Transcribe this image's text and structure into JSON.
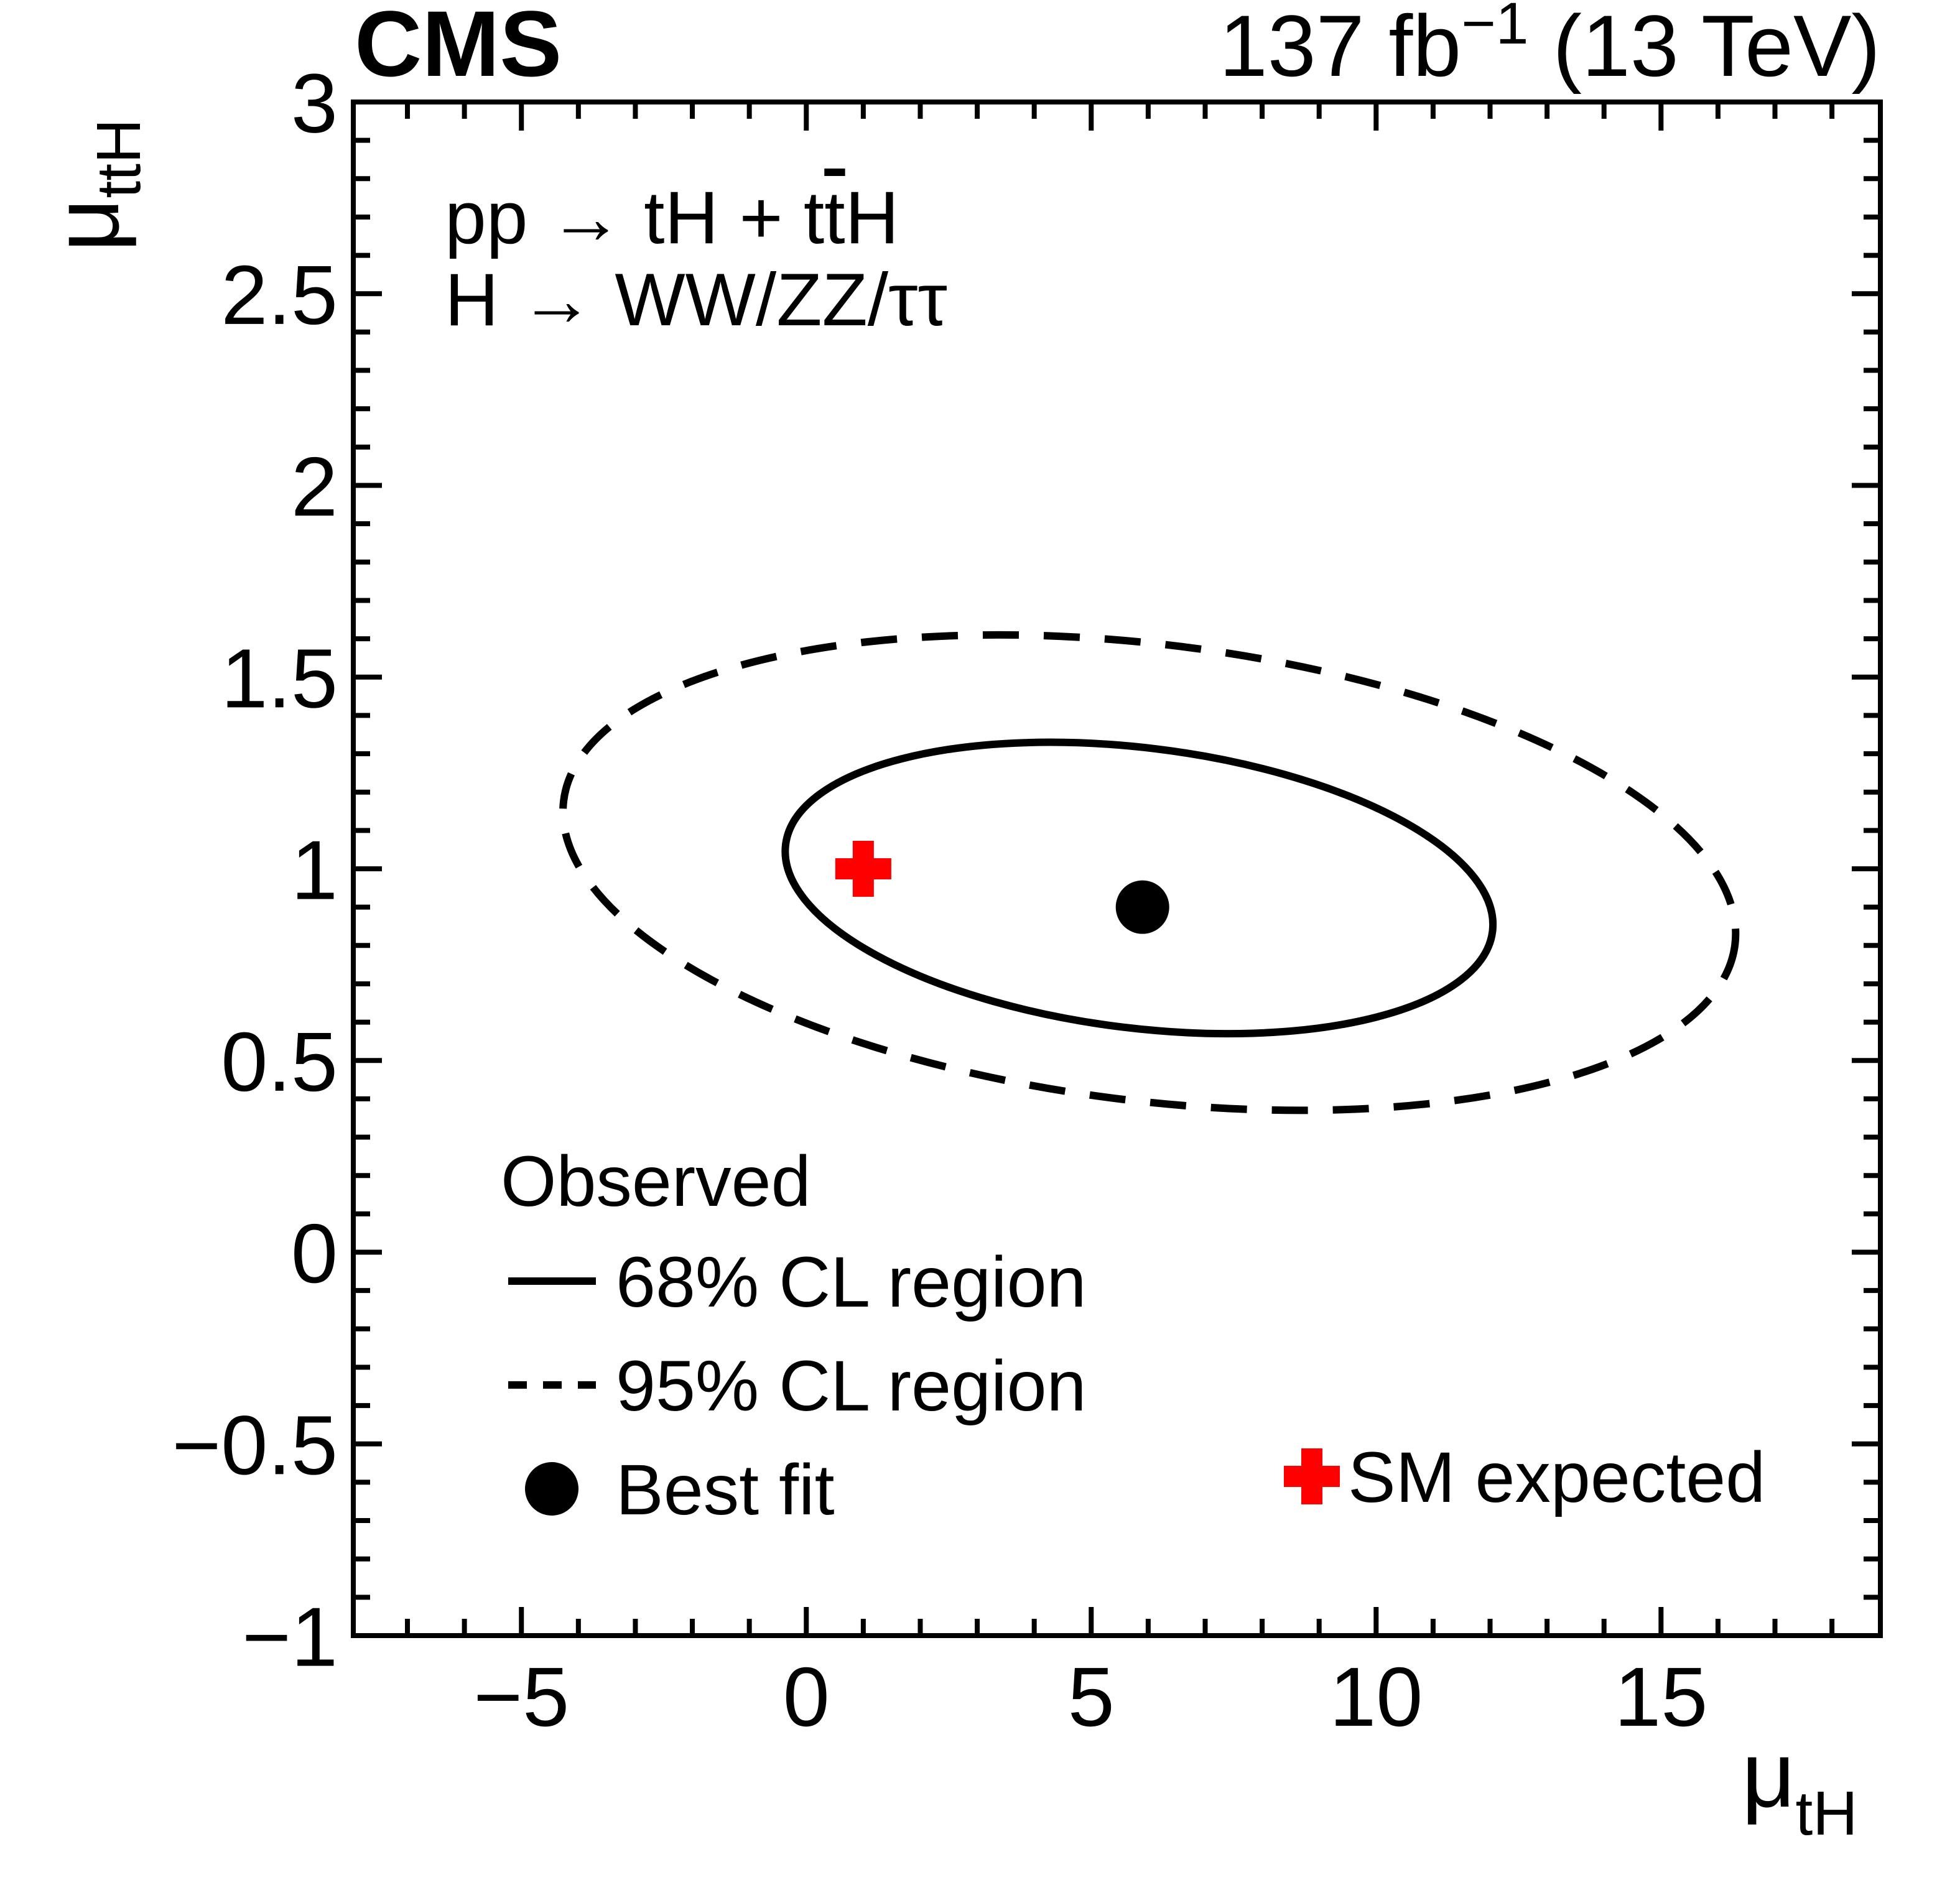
{
  "header": {
    "experiment": "CMS",
    "lumi_main": "137 fb",
    "lumi_sup": "−1",
    "lumi_rest": " (13 TeV)"
  },
  "annotations": {
    "process_line1_pre": "pp → tH + t",
    "process_line1_tbar": "t",
    "process_line1_post": "H",
    "process_line2": "H → WW/ZZ/ττ"
  },
  "legend": {
    "header": "Observed",
    "entry_68": "68% CL region",
    "entry_95": "95% CL region",
    "entry_bestfit": "Best fit",
    "entry_sm": "SM expected"
  },
  "axes": {
    "x": {
      "title_mu": "μ",
      "title_sub": "tH",
      "min": -7.95,
      "max": 18.85,
      "major_ticks": [
        -5,
        0,
        5,
        10,
        15
      ],
      "major_labels": [
        "−5",
        "0",
        "5",
        "10",
        "15"
      ],
      "minor_step": 1
    },
    "y": {
      "title_mu": "μ",
      "title_sub": "ttH",
      "min": -1,
      "max": 3,
      "major_ticks": [
        -1,
        -0.5,
        0,
        0.5,
        1,
        1.5,
        2,
        2.5,
        3
      ],
      "major_labels": [
        "−1",
        "−0.5",
        "0",
        "0.5",
        "1",
        "1.5",
        "2",
        "2.5",
        "3"
      ],
      "minor_step": 0.1
    }
  },
  "colors": {
    "black": "#000000",
    "sm_red": "#ff0000"
  },
  "chart_data": {
    "type": "scatter",
    "subtype": "2D likelihood confidence-level contours",
    "title": "CMS, pp → tH + ttH, H → WW/ZZ/ττ",
    "lumi": "137 fb−1 (13 TeV)",
    "xlabel": "μ_tH",
    "ylabel": "μ_ttH",
    "xlim": [
      -7.95,
      18.85
    ],
    "ylim": [
      -1,
      3
    ],
    "grid": false,
    "legend_position": "bottom-left",
    "best_fit": {
      "x": 5.9,
      "y": 0.9
    },
    "sm_expected": {
      "x": 1.0,
      "y": 1.0
    },
    "contours": [
      {
        "name": "68% CL region",
        "style": "solid",
        "center": [
          5.84,
          0.95
        ],
        "half_width_x": 6.21,
        "half_height_y": 0.38,
        "tilt_deg": 7,
        "x_extent": [
          -0.4,
          12.05
        ],
        "y_extent": [
          0.57,
          1.33
        ]
      },
      {
        "name": "95% CL region",
        "style": "dashed",
        "center": [
          6.02,
          0.99
        ],
        "half_width_x": 10.29,
        "half_height_y": 0.62,
        "tilt_deg": 7,
        "x_extent": [
          -4.27,
          16.31
        ],
        "y_extent": [
          0.37,
          1.61
        ]
      }
    ]
  }
}
